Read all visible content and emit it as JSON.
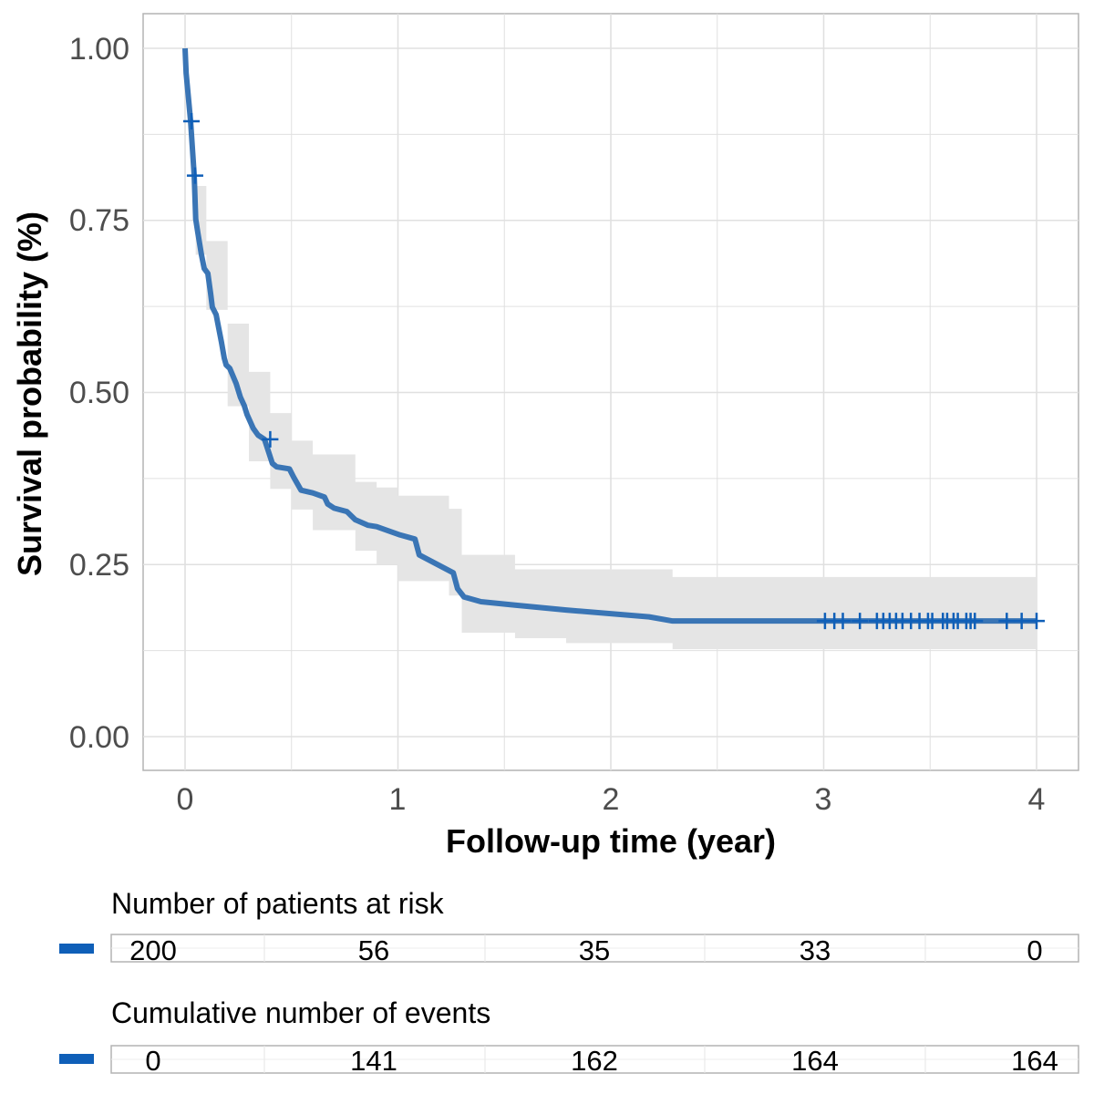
{
  "chart_data": {
    "type": "line",
    "subtype": "kaplan-meier",
    "xlabel": "Follow-up time (year)",
    "ylabel": "Survival probability (%)",
    "xlim": [
      0,
      4
    ],
    "ylim": [
      0,
      1
    ],
    "xticks": [
      "0",
      "1",
      "2",
      "3",
      "4"
    ],
    "yticks": [
      "0.00",
      "0.25",
      "0.50",
      "0.75",
      "1.00"
    ],
    "grid": true,
    "color": "#0F5FB8",
    "ci_color": "#E5E5E5",
    "steps": [
      [
        0,
        1.0
      ],
      [
        0.005,
        0.964
      ],
      [
        0.026,
        0.894
      ],
      [
        0.043,
        0.815
      ],
      [
        0.05,
        0.752
      ],
      [
        0.06,
        0.732
      ],
      [
        0.077,
        0.7
      ],
      [
        0.09,
        0.68
      ],
      [
        0.107,
        0.673
      ],
      [
        0.12,
        0.644
      ],
      [
        0.128,
        0.624
      ],
      [
        0.146,
        0.613
      ],
      [
        0.154,
        0.6
      ],
      [
        0.171,
        0.573
      ],
      [
        0.184,
        0.55
      ],
      [
        0.193,
        0.54
      ],
      [
        0.21,
        0.535
      ],
      [
        0.24,
        0.513
      ],
      [
        0.26,
        0.493
      ],
      [
        0.278,
        0.481
      ],
      [
        0.291,
        0.468
      ],
      [
        0.32,
        0.448
      ],
      [
        0.343,
        0.438
      ],
      [
        0.373,
        0.432
      ],
      [
        0.41,
        0.397
      ],
      [
        0.43,
        0.392
      ],
      [
        0.49,
        0.389
      ],
      [
        0.51,
        0.377
      ],
      [
        0.545,
        0.358
      ],
      [
        0.6,
        0.354
      ],
      [
        0.655,
        0.348
      ],
      [
        0.67,
        0.338
      ],
      [
        0.7,
        0.332
      ],
      [
        0.76,
        0.327
      ],
      [
        0.8,
        0.315
      ],
      [
        0.86,
        0.307
      ],
      [
        0.9,
        0.305
      ],
      [
        1.01,
        0.293
      ],
      [
        1.08,
        0.287
      ],
      [
        1.1,
        0.264
      ],
      [
        1.26,
        0.238
      ],
      [
        1.28,
        0.215
      ],
      [
        1.31,
        0.203
      ],
      [
        1.39,
        0.196
      ],
      [
        1.55,
        0.191
      ],
      [
        1.79,
        0.184
      ],
      [
        2.18,
        0.174
      ],
      [
        2.29,
        0.168
      ],
      [
        4.0,
        0.168
      ]
    ],
    "ci": [
      [
        0.05,
        0.8,
        0.7
      ],
      [
        0.1,
        0.72,
        0.62
      ],
      [
        0.2,
        0.6,
        0.48
      ],
      [
        0.3,
        0.53,
        0.4
      ],
      [
        0.4,
        0.47,
        0.36
      ],
      [
        0.5,
        0.43,
        0.33
      ],
      [
        0.6,
        0.41,
        0.3
      ],
      [
        0.8,
        0.37,
        0.27
      ],
      [
        0.9,
        0.362,
        0.25
      ],
      [
        1.0,
        0.35,
        0.226
      ],
      [
        1.24,
        0.331,
        0.205
      ],
      [
        1.3,
        0.264,
        0.151
      ],
      [
        1.55,
        0.243,
        0.143
      ],
      [
        1.79,
        0.243,
        0.136
      ],
      [
        2.29,
        0.232,
        0.127
      ],
      [
        4.0,
        0.232,
        0.125
      ]
    ],
    "censor": [
      0.03,
      0.047,
      0.4,
      3.006,
      3.05,
      3.09,
      3.17,
      3.25,
      3.28,
      3.31,
      3.34,
      3.37,
      3.41,
      3.45,
      3.49,
      3.51,
      3.56,
      3.58,
      3.61,
      3.63,
      3.67,
      3.69,
      3.71,
      3.86,
      3.93,
      4.0
    ]
  },
  "risk_table": {
    "title": "Number of patients at risk",
    "values": [
      "200",
      "56",
      "35",
      "33",
      "0"
    ]
  },
  "events_table": {
    "title": "Cumulative number of events",
    "values": [
      "0",
      "141",
      "162",
      "164",
      "164"
    ]
  }
}
